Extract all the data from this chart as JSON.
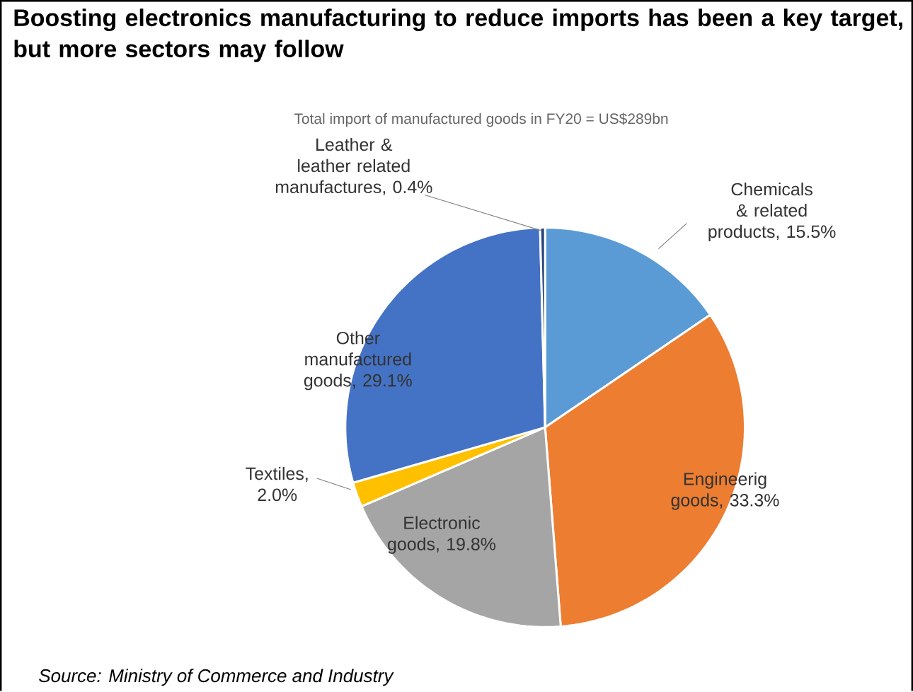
{
  "chart_data": {
    "type": "pie",
    "title": "Boosting electronics manufacturing to reduce imports has been a key target, but more sectors may follow",
    "subtitle": "Total import of manufactured goods in FY20 = US$289bn",
    "categories": [
      "Chemicals & related products, 15.5%",
      "Engineerig goods, 33.3%",
      "Electronic goods, 19.8%",
      "Textiles, 2.0%",
      "Other manufactured goods, 29.1%",
      "Leather & leather related manufactures, 0.4%"
    ],
    "values": [
      15.5,
      33.3,
      19.8,
      2.0,
      29.1,
      0.4
    ],
    "colors": [
      "#5b9bd5",
      "#ed7d31",
      "#a5a5a5",
      "#ffc000",
      "#4472c4",
      "#264478"
    ],
    "annotations": [
      "Source: Ministry of Commerce and Industry"
    ]
  }
}
